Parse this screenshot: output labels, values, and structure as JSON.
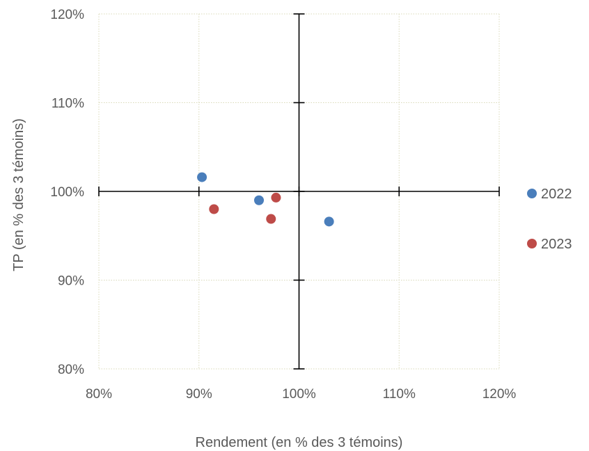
{
  "chart_data": {
    "type": "scatter",
    "title": "",
    "xlabel": "Rendement (en % des 3 témoins)",
    "ylabel": "TP (en % des 3 témoins)",
    "xlim": [
      80,
      120
    ],
    "ylim": [
      80,
      120
    ],
    "x_ticks": [
      80,
      90,
      100,
      110,
      120
    ],
    "y_ticks": [
      80,
      90,
      100,
      110,
      120
    ],
    "x_tick_labels": [
      "80%",
      "90%",
      "100%",
      "110%",
      "120%"
    ],
    "y_tick_labels": [
      "80%",
      "90%",
      "100%",
      "110%",
      "120%"
    ],
    "grid": true,
    "reference_lines": {
      "x": 100,
      "y": 100
    },
    "legend_position": "right",
    "series": [
      {
        "name": "2022",
        "color": "#4A7EBB",
        "points": [
          {
            "x": 90.3,
            "y": 101.6
          },
          {
            "x": 96.0,
            "y": 99.0
          },
          {
            "x": 103.0,
            "y": 96.6
          }
        ]
      },
      {
        "name": "2023",
        "color": "#BE4B48",
        "points": [
          {
            "x": 91.5,
            "y": 98.0
          },
          {
            "x": 97.2,
            "y": 96.9
          },
          {
            "x": 97.7,
            "y": 99.3
          }
        ]
      }
    ]
  }
}
